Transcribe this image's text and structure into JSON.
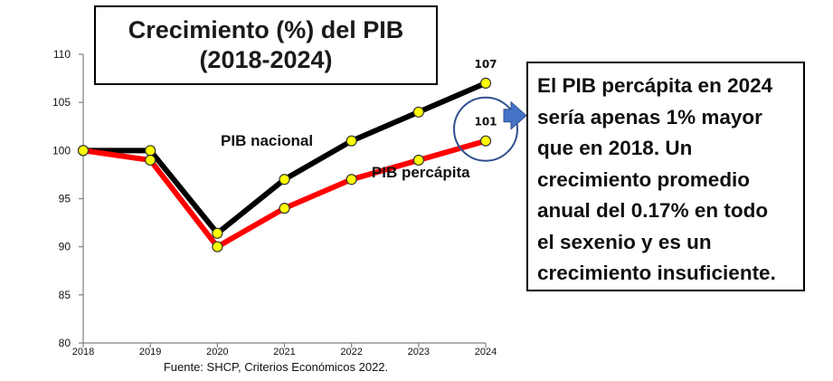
{
  "chart_data": {
    "type": "line",
    "title": "Crecimiento (%) del PIB",
    "subtitle": "(2018-2024)",
    "x": [
      "2018",
      "2019",
      "2020",
      "2021",
      "2022",
      "2023",
      "2024"
    ],
    "y_ticks": [
      80,
      85,
      90,
      95,
      100,
      105,
      110
    ],
    "ylim": [
      80,
      110
    ],
    "grid": false,
    "series": [
      {
        "name": "PIB nacional",
        "values": [
          100,
          100,
          91.4,
          97,
          101,
          104,
          107
        ],
        "color": "#000000"
      },
      {
        "name": "PIB percápita",
        "values": [
          100,
          99,
          90,
          94,
          97,
          99,
          101
        ],
        "color": "#ff0000"
      }
    ],
    "data_labels": [
      {
        "series": "PIB nacional",
        "x": "2024",
        "text": "107"
      },
      {
        "series": "PIB percápita",
        "x": "2024",
        "text": "101"
      }
    ],
    "marker_color": "#ffff00",
    "highlight": {
      "shape": "circle",
      "x": "2024",
      "y": 101,
      "color": "#2f4f8f"
    },
    "callout_arrow_color": "#4472c4"
  },
  "annotation": {
    "lines": [
      "El PIB percápita en 2024",
      "sería apenas 1% mayor",
      "que en 2018. Un",
      "crecimiento promedio",
      "anual del 0.17% en todo",
      "el sexenio y es un",
      "crecimiento insuficiente."
    ]
  },
  "source": "Fuente: SHCP, Criterios Económicos 2022."
}
